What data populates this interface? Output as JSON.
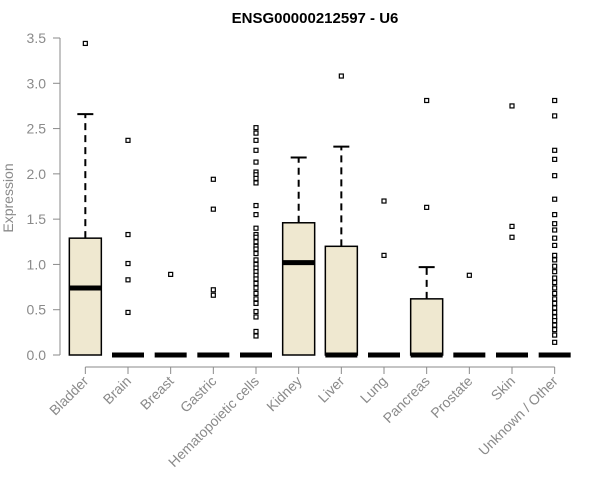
{
  "chart_data": {
    "type": "box",
    "title": "ENSG00000212597 - U6",
    "xlabel": "",
    "ylabel": "Expression",
    "ylim": [
      0,
      3.5
    ],
    "yticks": [
      "0.0",
      "0.5",
      "1.0",
      "1.5",
      "2.0",
      "2.5",
      "3.0",
      "3.5"
    ],
    "box_fill": "#efe8d0",
    "categories": [
      "Bladder",
      "Brain",
      "Breast",
      "Gastric",
      "Hematopoietic cells",
      "Kidney",
      "Liver",
      "Lung",
      "Pancreas",
      "Prostate",
      "Skin",
      "Unknown / Other"
    ],
    "boxes": [
      {
        "q1": 0,
        "median": 0.74,
        "q3": 1.29,
        "whisker_low": 0,
        "whisker_high": 2.66,
        "outliers": [
          3.44
        ]
      },
      {
        "q1": 0,
        "median": 0,
        "q3": 0,
        "whisker_low": 0,
        "whisker_high": 0,
        "outliers": [
          2.37,
          1.33,
          1.01,
          0.83,
          0.47
        ]
      },
      {
        "q1": 0,
        "median": 0,
        "q3": 0,
        "whisker_low": 0,
        "whisker_high": 0,
        "outliers": [
          0.89
        ]
      },
      {
        "q1": 0,
        "median": 0,
        "q3": 0,
        "whisker_low": 0,
        "whisker_high": 0,
        "outliers": [
          1.94,
          1.61,
          0.72,
          0.66
        ]
      },
      {
        "q1": 0,
        "median": 0,
        "q3": 0,
        "whisker_low": 0,
        "whisker_high": 0,
        "outliers": [
          2.51,
          2.45,
          2.37,
          2.26,
          2.13,
          2.02,
          1.99,
          1.95,
          1.9,
          1.65,
          1.55,
          1.4,
          1.33,
          1.3,
          1.25,
          1.2,
          1.17,
          1.12,
          1.05,
          1.0,
          0.96,
          0.92,
          0.88,
          0.84,
          0.79,
          0.74,
          0.68,
          0.62,
          0.57,
          0.48,
          0.42,
          0.26,
          0.21
        ]
      },
      {
        "q1": 0,
        "median": 1.02,
        "q3": 1.46,
        "whisker_low": 0,
        "whisker_high": 2.18,
        "outliers": []
      },
      {
        "q1": 0,
        "median": 0,
        "q3": 1.2,
        "whisker_low": 0,
        "whisker_high": 2.3,
        "outliers": [
          3.08
        ]
      },
      {
        "q1": 0,
        "median": 0,
        "q3": 0,
        "whisker_low": 0,
        "whisker_high": 0,
        "outliers": [
          1.7,
          1.1
        ]
      },
      {
        "q1": 0,
        "median": 0,
        "q3": 0.62,
        "whisker_low": 0,
        "whisker_high": 0.97,
        "outliers": [
          2.81,
          1.63
        ]
      },
      {
        "q1": 0,
        "median": 0,
        "q3": 0,
        "whisker_low": 0,
        "whisker_high": 0,
        "outliers": [
          0.88
        ]
      },
      {
        "q1": 0,
        "median": 0,
        "q3": 0,
        "whisker_low": 0,
        "whisker_high": 0,
        "outliers": [
          2.75,
          1.42,
          1.3
        ]
      },
      {
        "q1": 0,
        "median": 0,
        "q3": 0,
        "whisker_low": 0,
        "whisker_high": 0,
        "outliers": [
          2.81,
          2.64,
          2.26,
          2.16,
          1.98,
          1.72,
          1.55,
          1.45,
          1.38,
          1.29,
          1.21,
          1.1,
          1.05,
          0.98,
          0.92,
          0.85,
          0.8,
          0.74,
          0.68,
          0.62,
          0.57,
          0.52,
          0.47,
          0.42,
          0.38,
          0.33,
          0.28,
          0.22,
          0.14
        ]
      }
    ]
  }
}
